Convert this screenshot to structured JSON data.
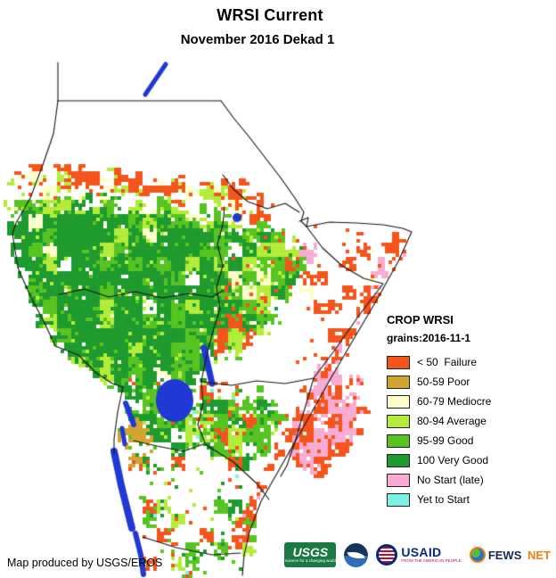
{
  "title": "WRSI Current",
  "subtitle": "November 2016 Dekad 1",
  "legend": {
    "title": "CROP WRSI",
    "subtitle": "grains:2016-11-1",
    "items": [
      {
        "label": "< 50  Failure",
        "color": "#F3551C"
      },
      {
        "label": "50-59 Poor",
        "color": "#D3A42F"
      },
      {
        "label": "60-79 Mediocre",
        "color": "#FCFDC9"
      },
      {
        "label": "80-94 Average",
        "color": "#B4EC3C"
      },
      {
        "label": "95-99 Good",
        "color": "#57C422"
      },
      {
        "label": "100 Very Good",
        "color": "#1F9A2F"
      },
      {
        "label": "No Start (late)",
        "color": "#F8ABD3"
      },
      {
        "label": "Yet to Start",
        "color": "#7BF3E2"
      }
    ]
  },
  "map": {
    "water_color": "#2038D4",
    "border_color": "#151515",
    "land_color": "#FFFFFF"
  },
  "footer": {
    "credit": "Map produced by USGS/EROS"
  },
  "logos": {
    "usgs": {
      "text": "USGS",
      "tagline": "science for a changing world"
    },
    "usaid": {
      "text": "USAID",
      "tagline": "FROM THE AMERICAN PEOPLE"
    },
    "fewsnet": {
      "fews": "FEWS",
      "net": " NET"
    }
  }
}
